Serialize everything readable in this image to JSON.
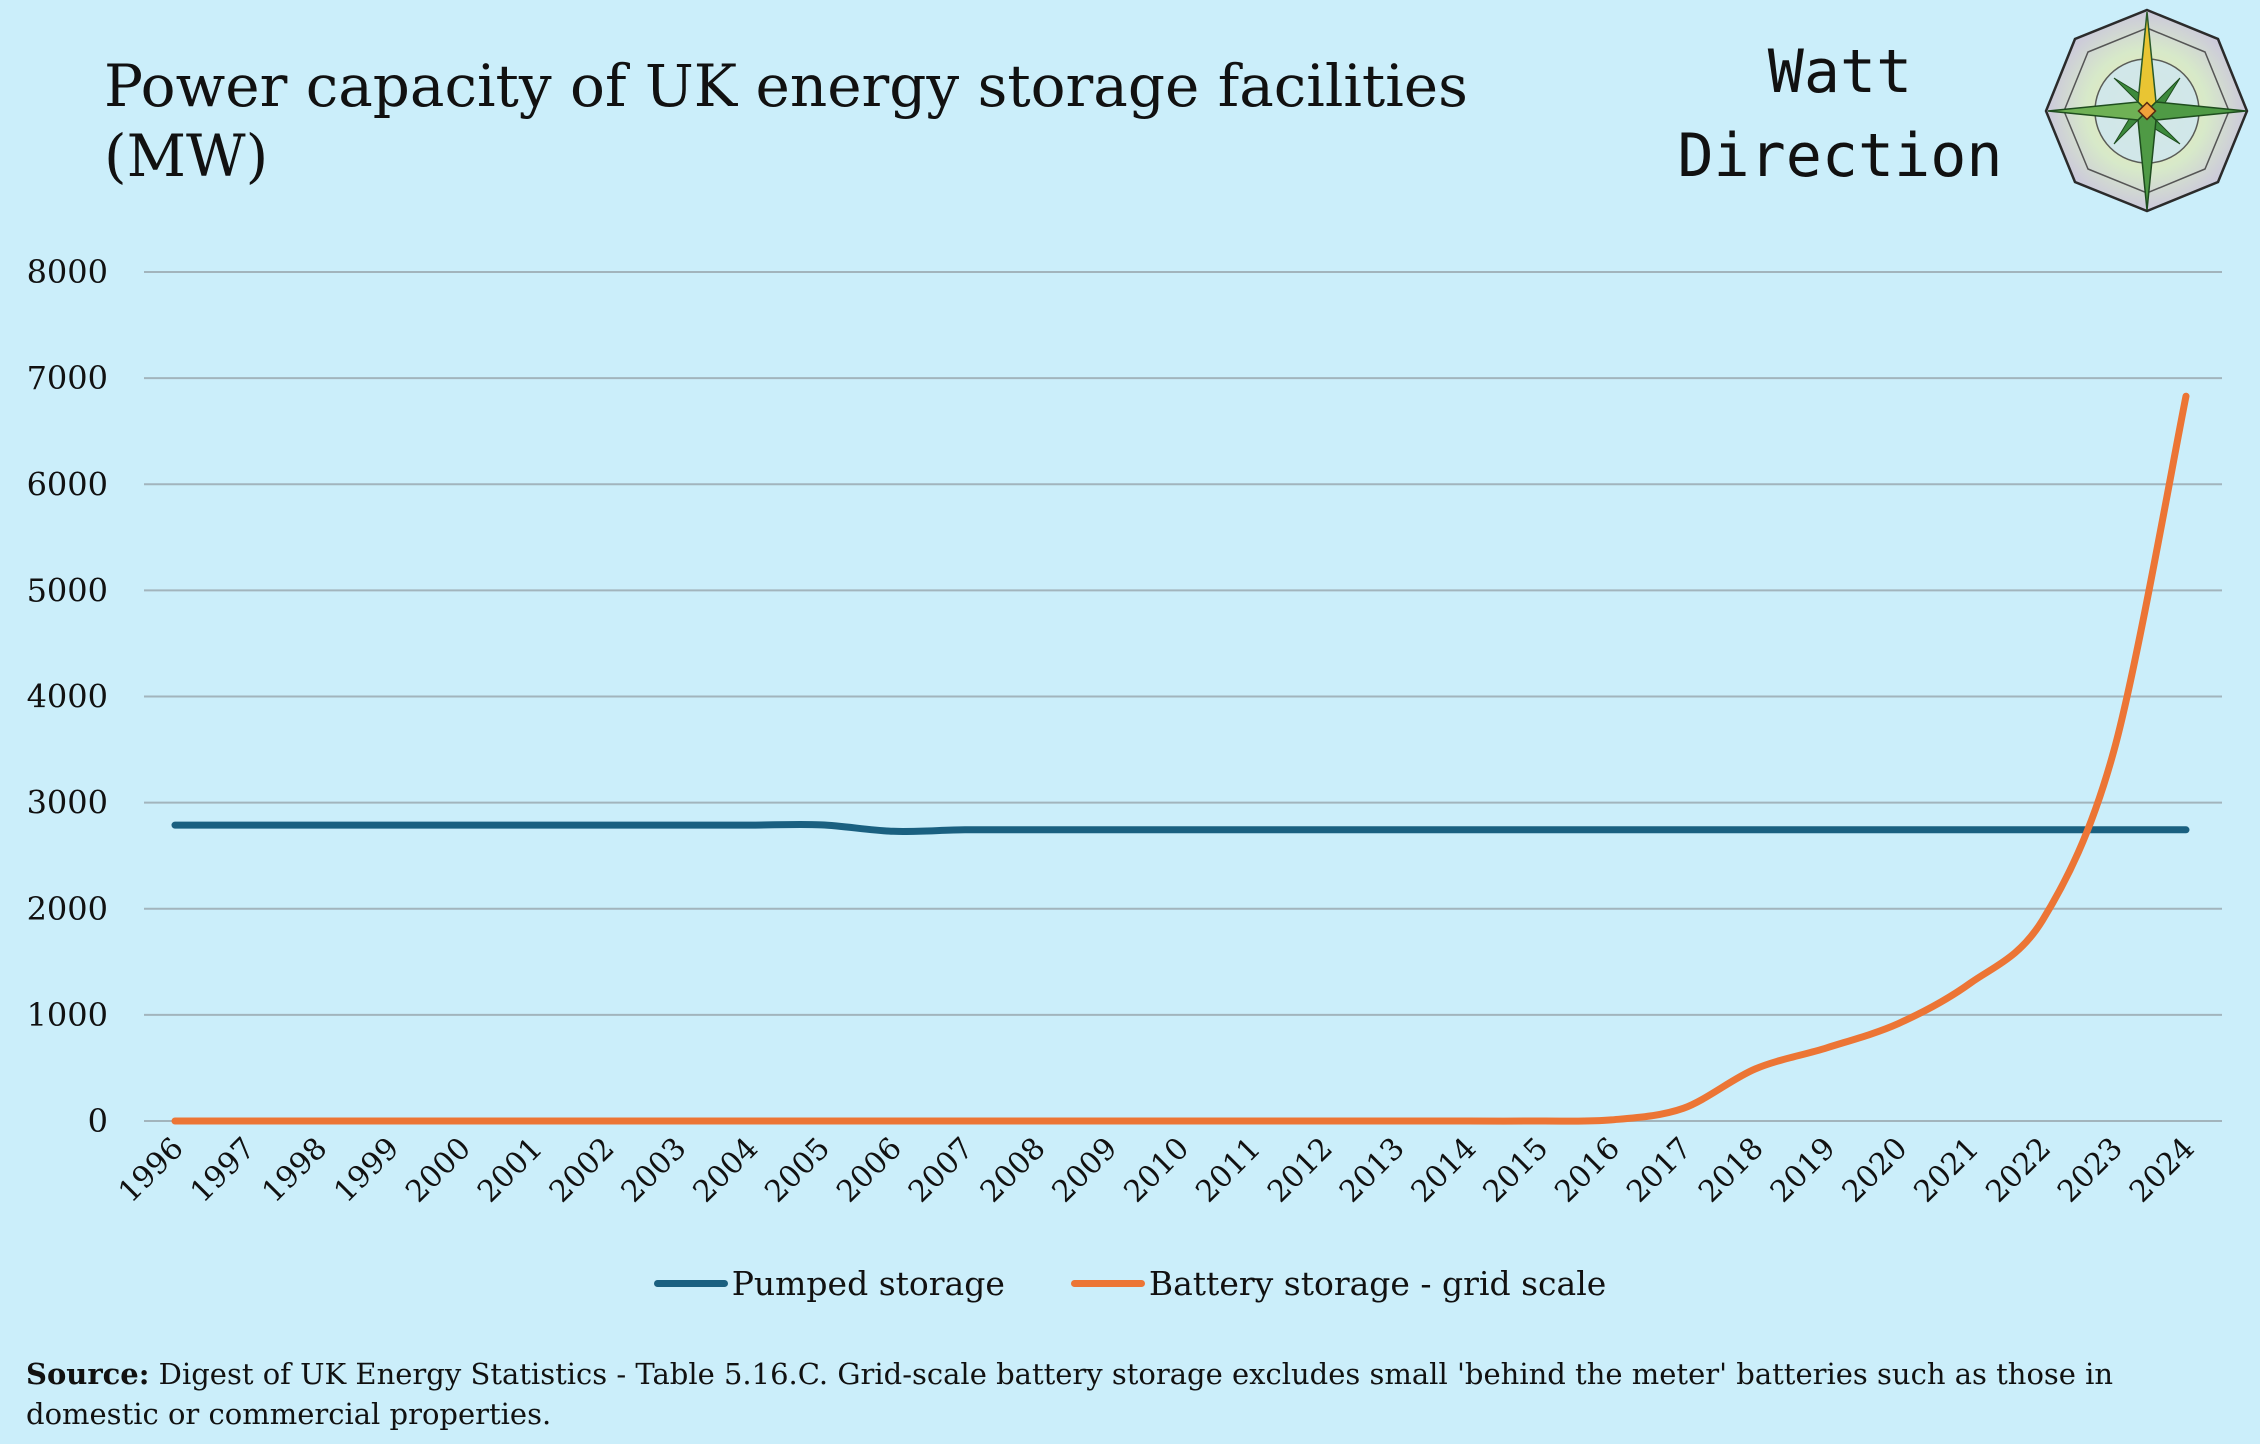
{
  "title": "Power capacity of UK energy storage facilities (MW)",
  "brand": {
    "line1": "Watt",
    "line2": "Direction"
  },
  "colors": {
    "background": "#cbeefa",
    "pumped": "#1a6080",
    "battery": "#ec7535",
    "grid": "#a2b4bc"
  },
  "chart_data": {
    "type": "line",
    "title": "Power capacity of UK energy storage facilities (MW)",
    "xlabel": "",
    "ylabel": "",
    "ylim": [
      0,
      8000
    ],
    "yticks": [
      0,
      1000,
      2000,
      3000,
      4000,
      5000,
      6000,
      7000,
      8000
    ],
    "grid": true,
    "legend": "bottom",
    "categories": [
      "1996",
      "1997",
      "1998",
      "1999",
      "2000",
      "2001",
      "2002",
      "2003",
      "2004",
      "2005",
      "2006",
      "2007",
      "2008",
      "2009",
      "2010",
      "2011",
      "2012",
      "2013",
      "2014",
      "2015",
      "2016",
      "2017",
      "2018",
      "2019",
      "2020",
      "2021",
      "2022",
      "2023",
      "2024"
    ],
    "series": [
      {
        "name": "Pumped storage",
        "color": "#1a6080",
        "values": [
          2788,
          2788,
          2788,
          2788,
          2788,
          2788,
          2788,
          2788,
          2788,
          2790,
          2730,
          2744,
          2744,
          2744,
          2744,
          2744,
          2744,
          2744,
          2744,
          2744,
          2744,
          2744,
          2744,
          2744,
          2744,
          2744,
          2744,
          2744,
          2744
        ]
      },
      {
        "name": "Battery storage - grid scale",
        "color": "#ec7535",
        "values": [
          0,
          0,
          0,
          0,
          0,
          0,
          0,
          0,
          0,
          0,
          0,
          0,
          0,
          0,
          0,
          0,
          0,
          0,
          0,
          0,
          10,
          120,
          490,
          690,
          920,
          1300,
          1890,
          3500,
          6830
        ]
      }
    ]
  },
  "source": {
    "label": "Source:",
    "text": " Digest of UK Energy Statistics - Table 5.16.C. Grid-scale battery storage excludes small 'behind the meter' batteries such as those in domestic or commercial properties."
  }
}
